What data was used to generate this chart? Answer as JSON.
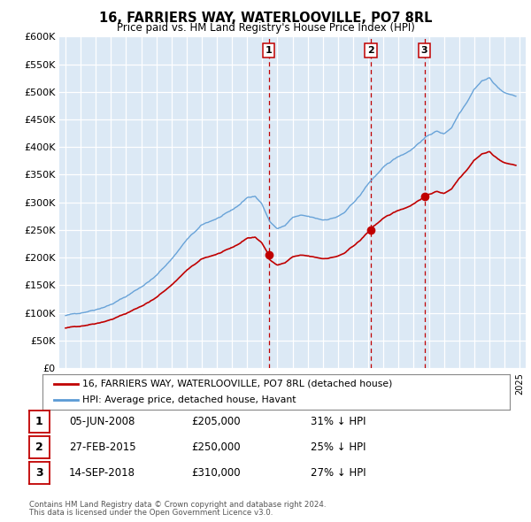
{
  "title1": "16, FARRIERS WAY, WATERLOOVILLE, PO7 8RL",
  "title2": "Price paid vs. HM Land Registry's House Price Index (HPI)",
  "legend_line1": "16, FARRIERS WAY, WATERLOOVILLE, PO7 8RL (detached house)",
  "legend_line2": "HPI: Average price, detached house, Havant",
  "transactions": [
    {
      "num": 1,
      "date": "05-JUN-2008",
      "price": 205000,
      "hpi_pct": "31% ↓ HPI",
      "year": 2008.43
    },
    {
      "num": 2,
      "date": "27-FEB-2015",
      "price": 250000,
      "hpi_pct": "25% ↓ HPI",
      "year": 2015.16
    },
    {
      "num": 3,
      "date": "14-SEP-2018",
      "price": 310000,
      "hpi_pct": "27% ↓ HPI",
      "year": 2018.71
    }
  ],
  "footnote1": "Contains HM Land Registry data © Crown copyright and database right 2024.",
  "footnote2": "This data is licensed under the Open Government Licence v3.0.",
  "hpi_color": "#5b9bd5",
  "price_color": "#c00000",
  "bg_color": "#dce9f5",
  "fig_bg": "#ffffff",
  "ylim": [
    0,
    600000
  ],
  "yticks": [
    0,
    50000,
    100000,
    150000,
    200000,
    250000,
    300000,
    350000,
    400000,
    450000,
    500000,
    550000,
    600000
  ],
  "xlim_start": 1994.6,
  "xlim_end": 2025.4,
  "sale_years": [
    2008.43,
    2015.16,
    2018.71
  ],
  "sale_prices": [
    205000,
    250000,
    310000
  ]
}
